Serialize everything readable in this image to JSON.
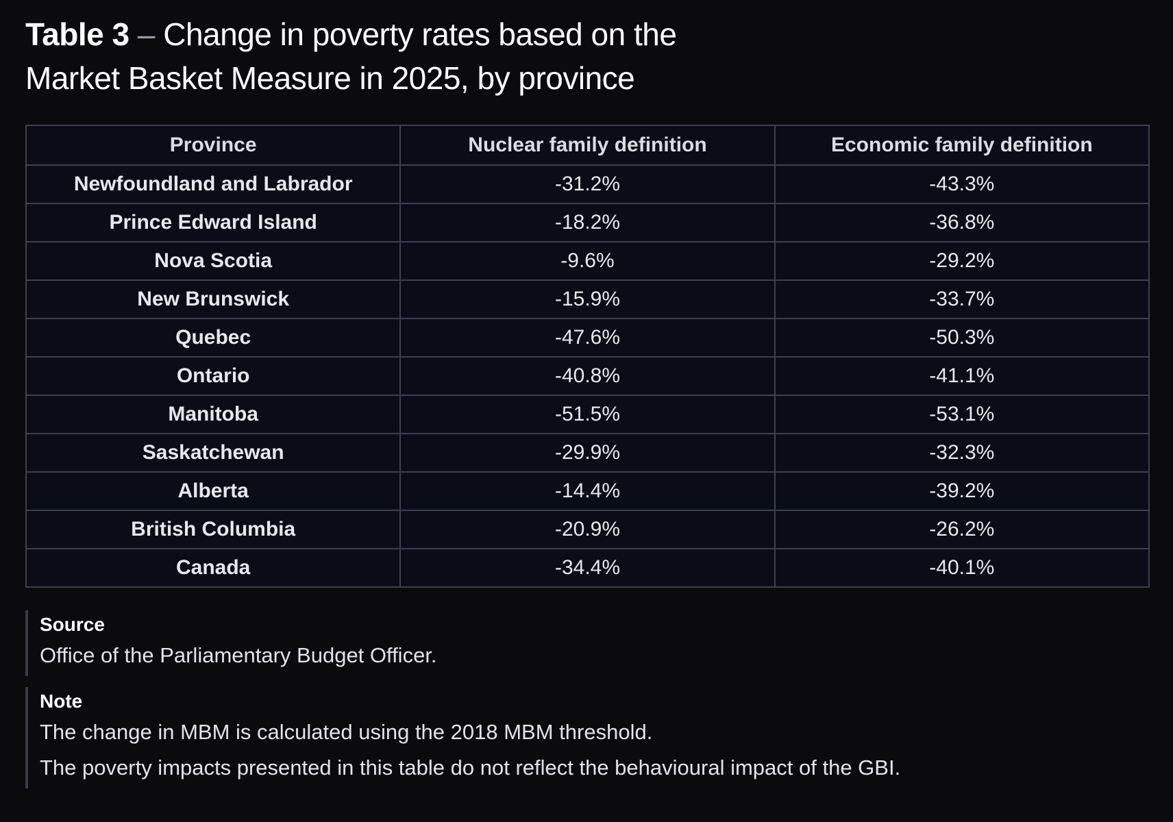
{
  "title": {
    "label": "Table 3",
    "dash": " – ",
    "text_line1": "Change in poverty rates based on the",
    "text_line2": "Market Basket Measure in 2025, by province"
  },
  "table": {
    "headers": [
      "Province",
      "Nuclear family definition",
      "Economic family definition"
    ],
    "rows": [
      [
        "Newfoundland and Labrador",
        "-31.2%",
        "-43.3%"
      ],
      [
        "Prince Edward Island",
        "-18.2%",
        "-36.8%"
      ],
      [
        "Nova Scotia",
        "-9.6%",
        "-29.2%"
      ],
      [
        "New Brunswick",
        "-15.9%",
        "-33.7%"
      ],
      [
        "Quebec",
        "-47.6%",
        "-50.3%"
      ],
      [
        "Ontario",
        "-40.8%",
        "-41.1%"
      ],
      [
        "Manitoba",
        "-51.5%",
        "-53.1%"
      ],
      [
        "Saskatchewan",
        "-29.9%",
        "-32.3%"
      ],
      [
        "Alberta",
        "-14.4%",
        "-39.2%"
      ],
      [
        "British Columbia",
        "-20.9%",
        "-26.2%"
      ],
      [
        "Canada",
        "-34.4%",
        "-40.1%"
      ]
    ]
  },
  "source": {
    "heading": "Source",
    "lines": [
      "Office of the Parliamentary Budget Officer."
    ]
  },
  "note": {
    "heading": "Note",
    "lines": [
      "The change in MBM is calculated using the 2018 MBM threshold.",
      "The poverty impacts presented in this table do not reflect the behavioural impact of the GBI."
    ]
  }
}
